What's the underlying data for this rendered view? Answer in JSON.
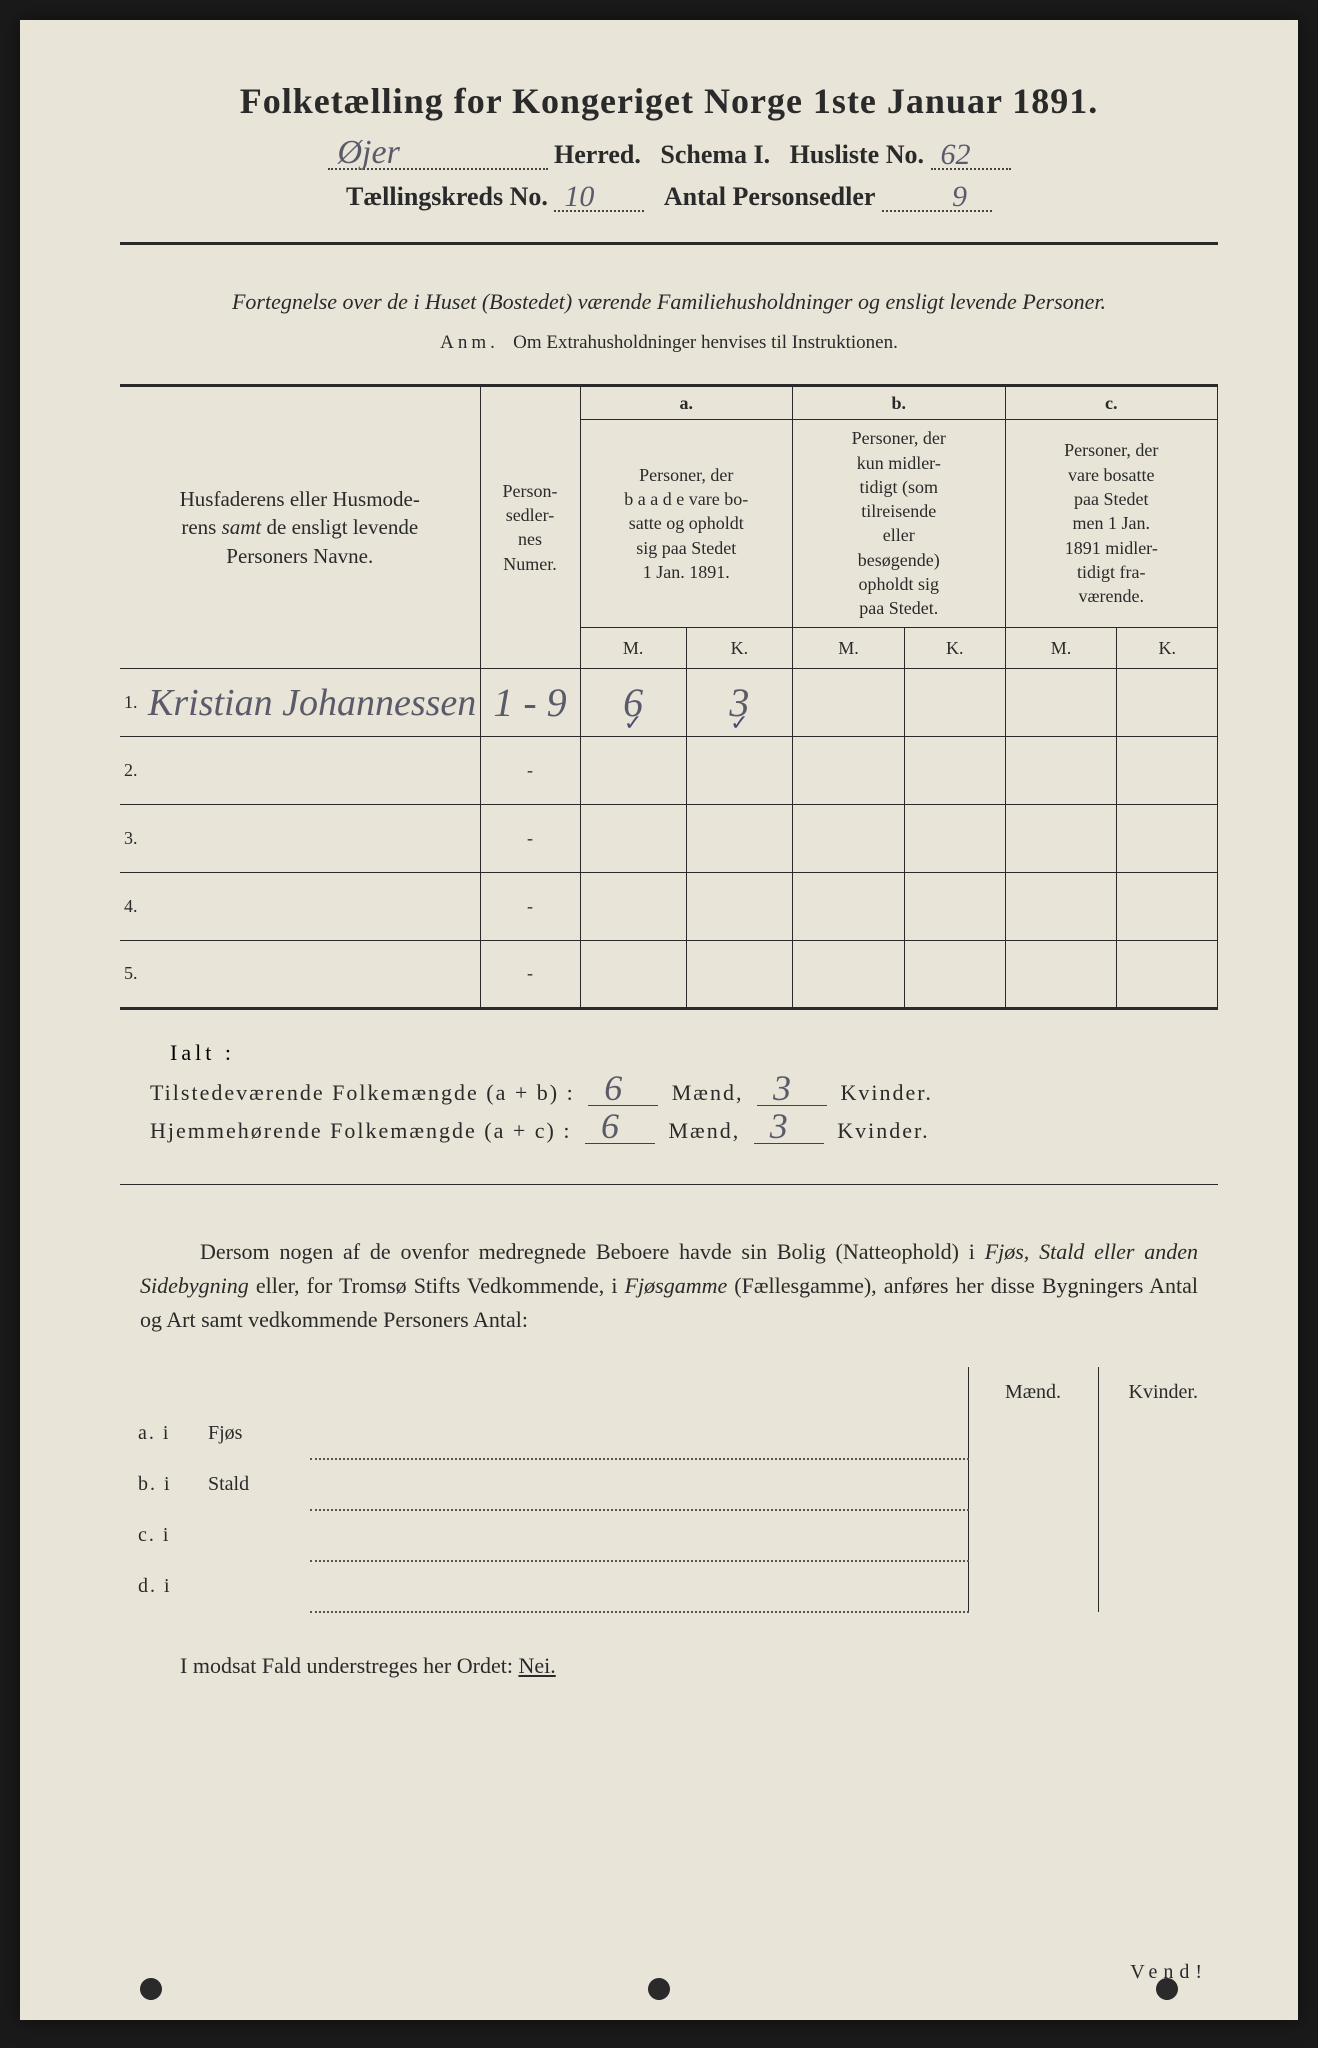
{
  "document": {
    "title": "Folketælling for Kongeriget Norge 1ste Januar 1891.",
    "background_color": "#e8e4d8",
    "text_color": "#2a2a2a",
    "handwriting_color": "#5a5a6a"
  },
  "header": {
    "herred_label": "Herred.",
    "schema_label": "Schema I.",
    "husliste_label": "Husliste No.",
    "herred_value": "Øjer",
    "husliste_value": "62",
    "kreds_label": "Tællingskreds No.",
    "kreds_value": "10",
    "personsedler_label": "Antal Personsedler",
    "personsedler_value": "9"
  },
  "subtitle": "Fortegnelse over de i Huset (Bostedet) værende Familiehusholdninger og ensligt levende Personer.",
  "anm": {
    "label": "Anm.",
    "text": "Om Extrahusholdninger henvises til Instruktionen."
  },
  "table": {
    "columns": {
      "name": "Husfaderens eller Husmoderens samt de ensligt levende Personers Navne.",
      "numer": "Person-\nsedler-\nnes\nNumer.",
      "a_letter": "a.",
      "a_text": "Personer, der baade vare bo-\nsatte og opholdt sig paa Stedet 1 Jan. 1891.",
      "b_letter": "b.",
      "b_text": "Personer, der kun midler-\ntidigt (som tilreisende eller besøgende) opholdt sig paa Stedet.",
      "c_letter": "c.",
      "c_text": "Personer, der vare bosatte paa Stedet men 1 Jan. 1891 midler-\ntidigt fra-\nværende.",
      "m": "M.",
      "k": "K."
    },
    "rows": [
      {
        "num": "1.",
        "name": "Kristian Johannessen",
        "numer": "1 - 9",
        "a_m": "6",
        "a_k": "3",
        "a_m_check": "✓",
        "a_k_check": "✓",
        "b_m": "",
        "b_k": "",
        "c_m": "",
        "c_k": ""
      },
      {
        "num": "2.",
        "name": "",
        "numer": "-",
        "a_m": "",
        "a_k": "",
        "b_m": "",
        "b_k": "",
        "c_m": "",
        "c_k": ""
      },
      {
        "num": "3.",
        "name": "",
        "numer": "-",
        "a_m": "",
        "a_k": "",
        "b_m": "",
        "b_k": "",
        "c_m": "",
        "c_k": ""
      },
      {
        "num": "4.",
        "name": "",
        "numer": "-",
        "a_m": "",
        "a_k": "",
        "b_m": "",
        "b_k": "",
        "c_m": "",
        "c_k": ""
      },
      {
        "num": "5.",
        "name": "",
        "numer": "-",
        "a_m": "",
        "a_k": "",
        "b_m": "",
        "b_k": "",
        "c_m": "",
        "c_k": ""
      }
    ]
  },
  "summary": {
    "ialt": "Ialt :",
    "line1_label": "Tilstedeværende Folkemængde (a + b) :",
    "line2_label": "Hjemmehørende Folkemængde (a + c) :",
    "maend": "Mænd,",
    "kvinder": "Kvinder.",
    "line1_m": "6",
    "line1_k": "3",
    "line2_m": "6",
    "line2_k": "3"
  },
  "paragraph": {
    "text_parts": {
      "p1": "Dersom nogen af de ovenfor medregnede Beboere havde sin Bolig (Natteophold) i ",
      "em1": "Fjøs, Stald eller anden Sidebygning",
      "p2": " eller, for Tromsø Stifts Vedkommende, i ",
      "em2": "Fjøsgamme",
      "p3": " (Fællesgamme), anføres her disse Bygningers Antal og Art samt vedkommende Personers Antal:"
    }
  },
  "subtable": {
    "maend_header": "Mænd.",
    "kvinder_header": "Kvinder.",
    "rows": [
      {
        "label": "a.  i",
        "type": "Fjøs"
      },
      {
        "label": "b.  i",
        "type": "Stald"
      },
      {
        "label": "c.  i",
        "type": ""
      },
      {
        "label": "d.  i",
        "type": ""
      }
    ]
  },
  "bottom": {
    "text_pre": "I modsat Fald understreges her Ordet: ",
    "nei": "Nei."
  },
  "vend": "Vend!"
}
